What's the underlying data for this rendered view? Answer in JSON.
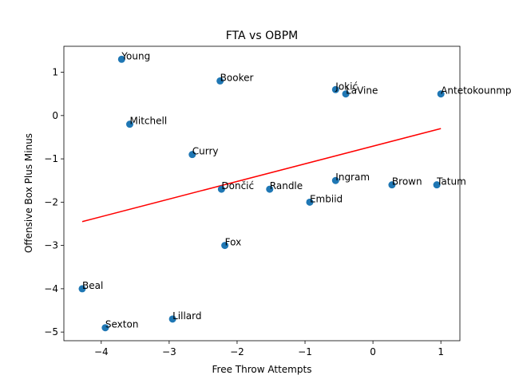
{
  "chart_data": {
    "type": "scatter",
    "title": "FTA vs OBPM",
    "xlabel": "Free Throw Attempts",
    "ylabel": "Offensive Box Plus Minus",
    "xlim": [
      -4.55,
      1.28
    ],
    "ylim": [
      -5.2,
      1.6
    ],
    "xticks": [
      -4,
      -3,
      -2,
      -1,
      0,
      1
    ],
    "xtick_labels": [
      "−4",
      "−3",
      "−2",
      "−1",
      "0",
      "1"
    ],
    "yticks": [
      -5,
      -4,
      -3,
      -2,
      -1,
      0,
      1
    ],
    "ytick_labels": [
      "−5",
      "−4",
      "−3",
      "−2",
      "−1",
      "0",
      "1"
    ],
    "grid": false,
    "points": [
      {
        "label": "Young",
        "x": -3.7,
        "y": 1.3
      },
      {
        "label": "Booker",
        "x": -2.25,
        "y": 0.8
      },
      {
        "label": "Jokić",
        "x": -0.55,
        "y": 0.6
      },
      {
        "label": "LaVine",
        "x": -0.4,
        "y": 0.5
      },
      {
        "label": "Antetokounmpo",
        "x": 1.0,
        "y": 0.5
      },
      {
        "label": "Mitchell",
        "x": -3.58,
        "y": -0.2
      },
      {
        "label": "Curry",
        "x": -2.66,
        "y": -0.9
      },
      {
        "label": "Ingram",
        "x": -0.55,
        "y": -1.5
      },
      {
        "label": "Brown",
        "x": 0.28,
        "y": -1.6
      },
      {
        "label": "Tatum",
        "x": 0.94,
        "y": -1.6
      },
      {
        "label": "Dončić",
        "x": -2.23,
        "y": -1.7
      },
      {
        "label": "Randle",
        "x": -1.52,
        "y": -1.7
      },
      {
        "label": "Embiid",
        "x": -0.93,
        "y": -2.0
      },
      {
        "label": "Fox",
        "x": -2.18,
        "y": -3.0
      },
      {
        "label": "Beal",
        "x": -4.28,
        "y": -4.0
      },
      {
        "label": "Lillard",
        "x": -2.95,
        "y": -4.7
      },
      {
        "label": "Sexton",
        "x": -3.94,
        "y": -4.9
      }
    ],
    "fit_line": {
      "x": [
        -4.28,
        1.0
      ],
      "y": [
        -2.45,
        -0.3
      ]
    },
    "colors": {
      "points": "#1f77b4",
      "fit_line": "#ff0000"
    }
  }
}
